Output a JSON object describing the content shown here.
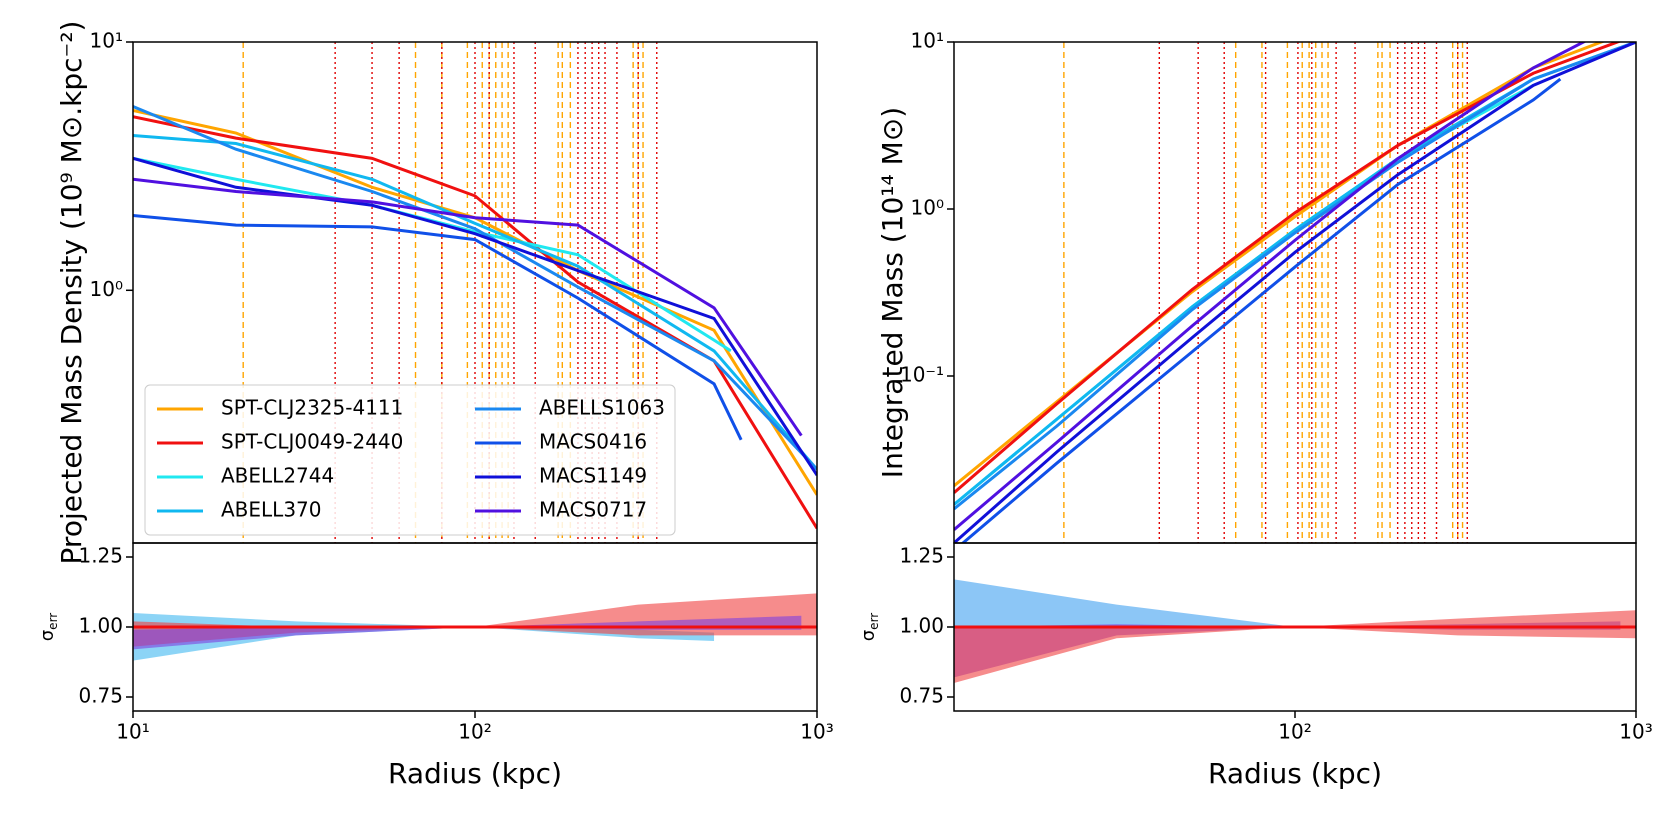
{
  "chart_data": [
    {
      "type": "line",
      "xscale": "log",
      "yscale": "log",
      "xlim": [
        10,
        1000
      ],
      "ylim": [
        0.096,
        10
      ],
      "yticks": [
        {
          "value": 1,
          "label": "10⁰"
        },
        {
          "value": 10,
          "label": "10¹"
        }
      ],
      "ylabel": "Projected Mass Density (10⁹ M⊙.kpc⁻²)",
      "legend": "lower left",
      "legend_columns": 2,
      "vlines": [
        {
          "color": "#ffa500",
          "style": "dashed",
          "x": [
            21,
            67,
            80,
            95,
            105,
            110,
            115,
            120,
            125,
            175,
            180,
            190,
            290,
            300,
            310
          ]
        },
        {
          "color": "#e00000",
          "style": "dotted",
          "x": [
            39,
            50,
            60,
            80,
            100,
            110,
            130,
            150,
            200,
            210,
            220,
            230,
            240,
            260,
            300,
            340
          ]
        }
      ],
      "series": [
        {
          "name": "SPT-CLJ2325-4111",
          "color": "#ffa500",
          "x": [
            10,
            20,
            50,
            100,
            200,
            500,
            1000
          ],
          "values": [
            5.3,
            4.3,
            2.6,
            1.96,
            1.2,
            0.69,
            0.15
          ]
        },
        {
          "name": "SPT-CLJ0049-2440",
          "color": "#f01010",
          "x": [
            10,
            20,
            50,
            100,
            200,
            500,
            1000
          ],
          "values": [
            5.0,
            4.1,
            3.4,
            2.4,
            1.08,
            0.52,
            0.11
          ]
        },
        {
          "name": "ABELL2744",
          "color": "#20e8f0",
          "x": [
            10,
            20,
            50,
            100,
            200,
            500,
            560
          ],
          "values": [
            3.4,
            2.8,
            2.2,
            1.72,
            1.39,
            0.63,
            0.57
          ]
        },
        {
          "name": "ABELL370",
          "color": "#10b8f0",
          "x": [
            10,
            20,
            50,
            100,
            200,
            500,
            1000
          ],
          "values": [
            4.2,
            3.9,
            2.8,
            1.86,
            1.25,
            0.57,
            0.19
          ]
        },
        {
          "name": "ABELLS1063",
          "color": "#1a88f0",
          "x": [
            10,
            20,
            50,
            100,
            200,
            500,
            1000
          ],
          "values": [
            5.5,
            3.7,
            2.5,
            1.77,
            1.03,
            0.52,
            0.19
          ]
        },
        {
          "name": "MACS0416",
          "color": "#1050e8",
          "x": [
            10,
            20,
            50,
            100,
            200,
            500,
            600
          ],
          "values": [
            2.0,
            1.83,
            1.8,
            1.6,
            0.93,
            0.42,
            0.25
          ]
        },
        {
          "name": "MACS1149",
          "color": "#1010d8",
          "x": [
            10,
            20,
            50,
            100,
            200,
            500,
            1000
          ],
          "values": [
            3.4,
            2.6,
            2.2,
            1.69,
            1.2,
            0.77,
            0.18
          ]
        },
        {
          "name": "MACS0717",
          "color": "#5010e0",
          "x": [
            10,
            20,
            50,
            100,
            200,
            500,
            900
          ],
          "values": [
            2.8,
            2.5,
            2.27,
            1.96,
            1.83,
            0.85,
            0.26
          ]
        }
      ]
    },
    {
      "type": "line",
      "xscale": "log",
      "yscale": "log",
      "xlim": [
        10,
        1000
      ],
      "ylim": [
        0.01,
        10
      ],
      "yticks": [
        {
          "value": 0.1,
          "label": "10⁻¹"
        },
        {
          "value": 1,
          "label": "10⁰"
        },
        {
          "value": 10,
          "label": "10¹"
        }
      ],
      "ylabel": "Integrated Mass (10¹⁴ M⊙)",
      "vlines": [
        {
          "color": "#ffa500",
          "style": "dashed",
          "x": [
            21,
            67,
            80,
            95,
            105,
            110,
            115,
            120,
            125,
            175,
            180,
            190,
            290,
            300,
            310
          ]
        },
        {
          "color": "#e00000",
          "style": "dotted",
          "x": [
            40,
            52,
            62,
            82,
            102,
            112,
            132,
            150,
            200,
            210,
            220,
            230,
            240,
            260,
            300,
            320
          ]
        }
      ],
      "series": [
        {
          "color": "#ffa500",
          "x": [
            10,
            20,
            50,
            100,
            200,
            500,
            1000
          ],
          "values": [
            0.022,
            0.07,
            0.32,
            0.9,
            2.4,
            7,
            12
          ]
        },
        {
          "color": "#f01010",
          "x": [
            10,
            20,
            50,
            100,
            200,
            500,
            1000
          ],
          "values": [
            0.02,
            0.068,
            0.33,
            0.95,
            2.4,
            6.5,
            11
          ]
        },
        {
          "color": "#20e8f0",
          "x": [
            10,
            20,
            50,
            100,
            200,
            500
          ],
          "values": [
            0.017,
            0.055,
            0.26,
            0.75,
            2.0,
            5.5
          ]
        },
        {
          "color": "#10b8f0",
          "x": [
            10,
            20,
            50,
            100,
            200,
            500,
            1000
          ],
          "values": [
            0.017,
            0.055,
            0.26,
            0.75,
            2.0,
            6,
            10
          ]
        },
        {
          "color": "#1a88f0",
          "x": [
            10,
            20,
            50,
            100,
            200,
            500,
            1000
          ],
          "values": [
            0.016,
            0.05,
            0.25,
            0.72,
            1.9,
            6,
            10
          ]
        },
        {
          "color": "#1050e8",
          "x": [
            10,
            20,
            50,
            100,
            200,
            500,
            600
          ],
          "values": [
            0.009,
            0.03,
            0.14,
            0.45,
            1.4,
            4.5,
            6
          ]
        },
        {
          "color": "#1010d8",
          "x": [
            10,
            20,
            50,
            100,
            200,
            500,
            1000
          ],
          "values": [
            0.01,
            0.035,
            0.17,
            0.55,
            1.6,
            5.5,
            10
          ]
        },
        {
          "color": "#5010e0",
          "x": [
            10,
            20,
            50,
            100,
            200,
            500,
            900
          ],
          "values": [
            0.012,
            0.04,
            0.2,
            0.65,
            2.0,
            7,
            13
          ]
        }
      ]
    },
    {
      "type": "band",
      "xscale": "log",
      "yscale": "linear",
      "xlim": [
        10,
        1000
      ],
      "ylim": [
        0.7,
        1.3
      ],
      "xticks": [
        {
          "value": 10,
          "label": "10¹"
        },
        {
          "value": 100,
          "label": "10²"
        },
        {
          "value": 1000,
          "label": "10³"
        }
      ],
      "yticks": [
        0.75,
        {
          "value": 1,
          "label": "1.00"
        },
        1.25
      ],
      "xlabel": "Radius (kpc)",
      "ylabel_symbol": "σ",
      "ylabel_sub": "err",
      "bands": [
        {
          "color": "#40b8f0",
          "x": [
            10,
            30,
            100,
            300,
            500
          ],
          "upper": [
            1.05,
            1.02,
            1.0,
            0.99,
            0.98
          ],
          "lower": [
            0.88,
            0.97,
            1.0,
            0.96,
            0.95
          ]
        },
        {
          "color": "#f04040",
          "x": [
            10,
            30,
            100,
            300,
            1000
          ],
          "upper": [
            1.02,
            1.0,
            1.0,
            1.08,
            1.12
          ],
          "lower": [
            0.93,
            0.98,
            1.0,
            0.97,
            0.97
          ]
        },
        {
          "color": "#8040e0",
          "x": [
            10,
            30,
            100,
            300,
            900
          ],
          "upper": [
            0.99,
            1.0,
            1.0,
            1.02,
            1.04
          ],
          "lower": [
            0.92,
            0.97,
            1.0,
            0.99,
            0.99
          ]
        }
      ],
      "series": [
        {
          "color": "#f01010",
          "x": [
            10,
            1000
          ],
          "values": [
            1,
            1
          ]
        }
      ]
    },
    {
      "type": "band",
      "xscale": "log",
      "yscale": "linear",
      "xlim": [
        10,
        1000
      ],
      "ylim": [
        0.7,
        1.3
      ],
      "xticks": [
        {
          "value": 100,
          "label": "10²"
        },
        {
          "value": 1000,
          "label": "10³"
        }
      ],
      "yticks": [
        0.75,
        {
          "value": 1,
          "label": "1.00"
        },
        1.25
      ],
      "xlabel": "Radius (kpc)",
      "ylabel_symbol": "σ",
      "ylabel_sub": "err",
      "bands": [
        {
          "color": "#40a0f0",
          "x": [
            10,
            30,
            100,
            500
          ],
          "upper": [
            1.17,
            1.08,
            1.0,
            0.98
          ],
          "lower": [
            1.0,
            1.0,
            1.0,
            0.98
          ]
        },
        {
          "color": "#8040e0",
          "x": [
            10,
            30,
            100,
            300,
            900
          ],
          "upper": [
            1.0,
            1.01,
            1.0,
            1.01,
            1.02
          ],
          "lower": [
            0.82,
            0.97,
            1.0,
            0.99,
            0.99
          ]
        },
        {
          "color": "#f04040",
          "x": [
            10,
            30,
            100,
            300,
            1000
          ],
          "upper": [
            1.0,
            1.0,
            1.0,
            1.03,
            1.06
          ],
          "lower": [
            0.8,
            0.96,
            1.0,
            0.97,
            0.96
          ]
        }
      ],
      "series": [
        {
          "color": "#f01010",
          "x": [
            10,
            1000
          ],
          "values": [
            1,
            1
          ]
        }
      ]
    }
  ]
}
